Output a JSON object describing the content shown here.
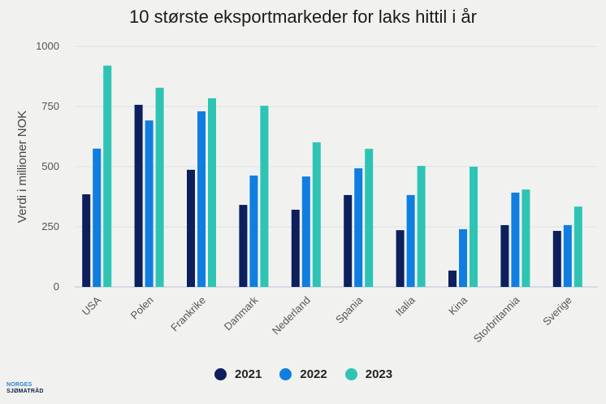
{
  "chart_data": {
    "type": "bar",
    "title": "10 største eksportmarkeder for laks hittil i år",
    "xlabel": "",
    "ylabel": "Verdi i millioner NOK",
    "ylim": [
      0,
      1000
    ],
    "yticks": [
      0,
      250,
      500,
      750,
      1000
    ],
    "grid": true,
    "legend_position": "bottom",
    "categories": [
      "USA",
      "Polen",
      "Frankrike",
      "Danmark",
      "Nederland",
      "Spania",
      "Italia",
      "Kina",
      "Storbritannia",
      "Sverige"
    ],
    "series": [
      {
        "name": "2021",
        "color": "#0d1f5c",
        "values": [
          385,
          757,
          487,
          341,
          321,
          382,
          236,
          68,
          257,
          233
        ]
      },
      {
        "name": "2022",
        "color": "#0f7ee0",
        "values": [
          575,
          692,
          730,
          463,
          459,
          493,
          382,
          240,
          392,
          257
        ]
      },
      {
        "name": "2023",
        "color": "#2ec4b4",
        "values": [
          920,
          828,
          784,
          753,
          601,
          574,
          503,
          500,
          405,
          334
        ]
      }
    ]
  },
  "logo": {
    "line1": "NORGES",
    "line2": "SJØMATRÅD"
  }
}
